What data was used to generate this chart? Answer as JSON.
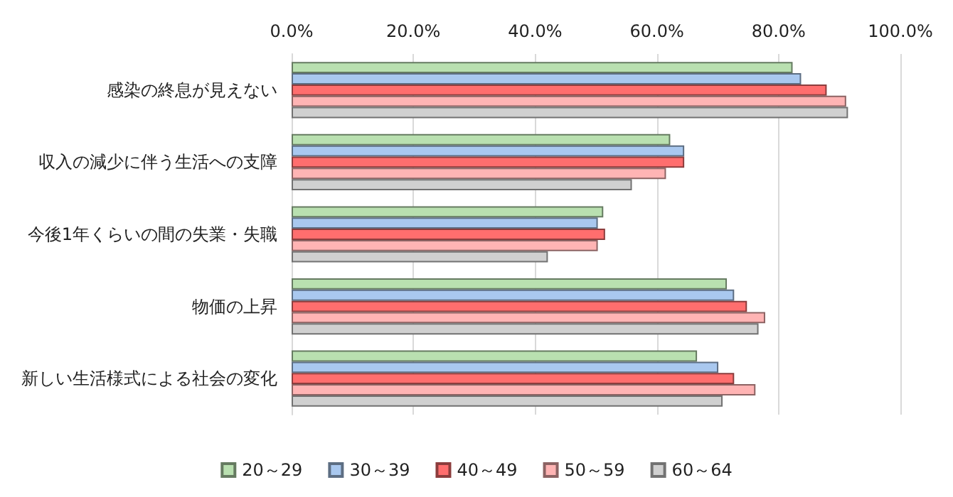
{
  "chart_data": {
    "type": "bar",
    "orientation": "horizontal",
    "categories": [
      "感染の終息が見えない",
      "収入の減少に伴う生活への支障",
      "今後1年くらいの間の失業・失職",
      "物価の上昇",
      "新しい生活様式による社会の変化"
    ],
    "series": [
      {
        "name": "20～29",
        "color": "#b9e0b0",
        "values": [
          82.3,
          62.2,
          51.2,
          71.5,
          66.6
        ]
      },
      {
        "name": "30～39",
        "color": "#a9c8ef",
        "values": [
          83.7,
          64.5,
          50.3,
          72.7,
          70.1
        ]
      },
      {
        "name": "40～49",
        "color": "#ff6e6e",
        "values": [
          87.9,
          64.5,
          51.5,
          74.8,
          72.7
        ]
      },
      {
        "name": "50～59",
        "color": "#ffb4b4",
        "values": [
          91.1,
          61.5,
          50.3,
          77.8,
          76.2
        ]
      },
      {
        "name": "60～64",
        "color": "#d0d0d0",
        "values": [
          91.4,
          55.9,
          42.1,
          76.7,
          70.8
        ]
      }
    ],
    "xlim": [
      0,
      100
    ],
    "xticks": [
      {
        "value": 0,
        "label": "0.0%"
      },
      {
        "value": 20,
        "label": "20.0%"
      },
      {
        "value": 40,
        "label": "40.0%"
      },
      {
        "value": 60,
        "label": "60.0%"
      },
      {
        "value": 80,
        "label": "80.0%"
      },
      {
        "value": 100,
        "label": "100.0%"
      }
    ],
    "grid": "x",
    "legend": "bottom"
  }
}
